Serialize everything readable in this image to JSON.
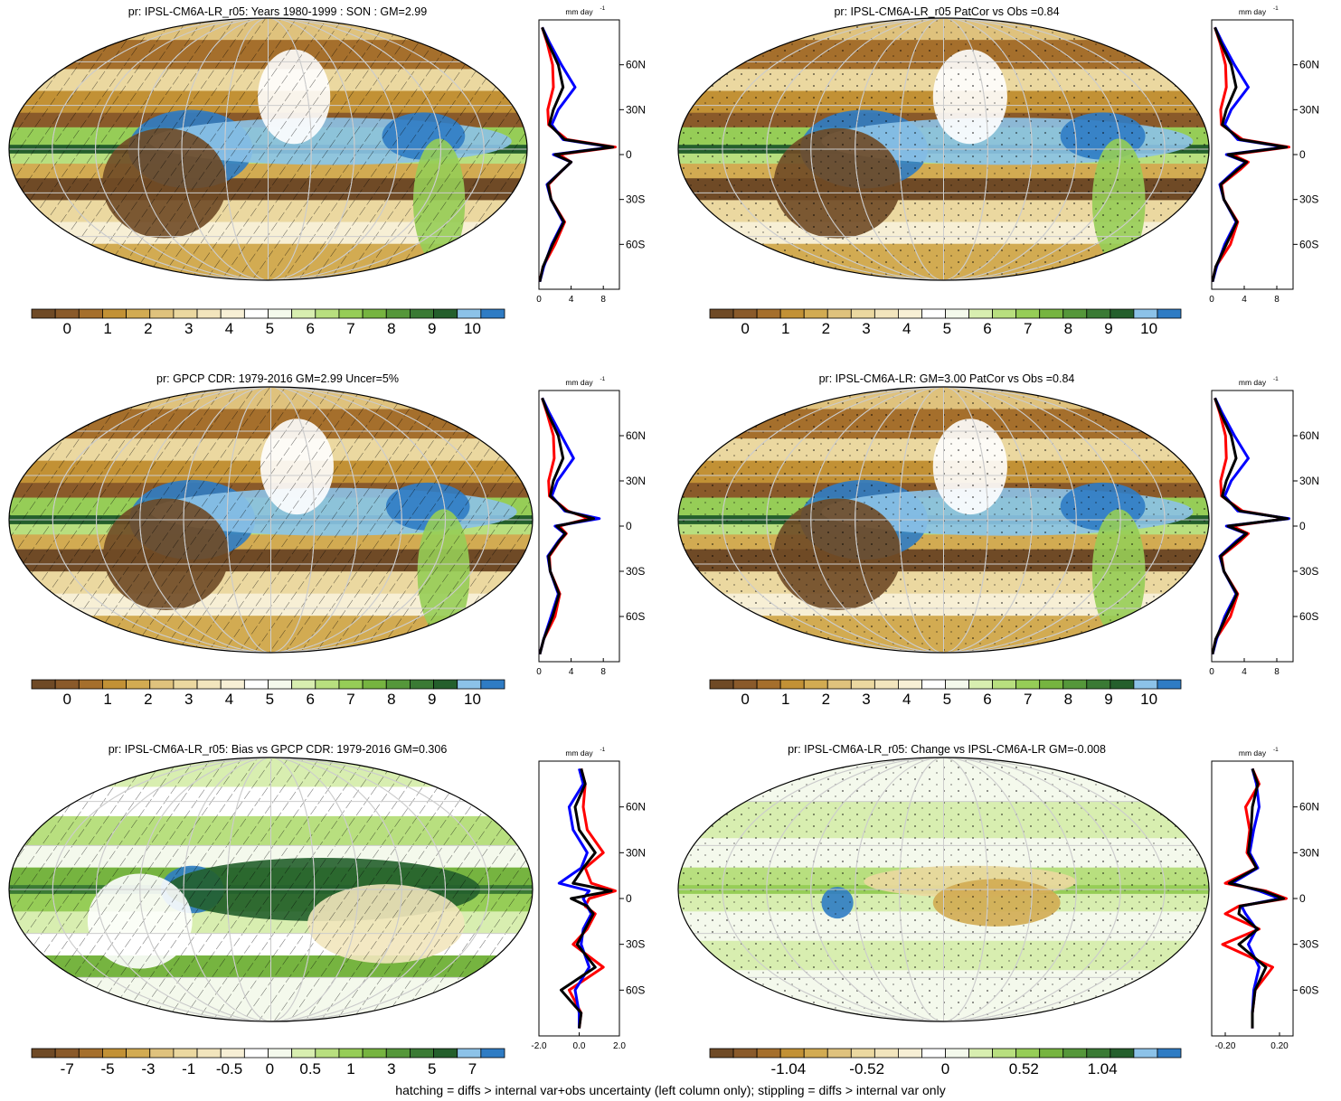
{
  "colors": {
    "levels": [
      "#6f4a26",
      "#8a5a2a",
      "#a56f2c",
      "#c29135",
      "#d2ab52",
      "#dfc27d",
      "#ebd8a0",
      "#f2e5bd",
      "#f7efd5",
      "#ffffff",
      "#f4f9ec",
      "#d8eeb0",
      "#b8df7f",
      "#96cd57",
      "#76b440",
      "#55973a",
      "#3a7a34",
      "#245f2c",
      "#8cc2e8",
      "#2f7cc4"
    ],
    "zonal_model": "#ff0000",
    "zonal_obs": "#0000ff",
    "zonal_mean": "#000000"
  },
  "footnote": "hatching = diffs > internal var+obs uncertainty (left column only); stippling = diffs > internal var only",
  "zonal_common": {
    "unit": "mm day",
    "unit_exp": "-1",
    "lat_labels": [
      "60N",
      "30N",
      "0",
      "30S",
      "60S"
    ],
    "lat_values": [
      60,
      30,
      0,
      -30,
      -60
    ]
  },
  "panels": [
    {
      "id": "model-clim",
      "title": "pr: IPSL-CM6A-LR_r05: Years 1980-1999 : SON : GM=2.99",
      "map_type": "clim",
      "overlay": "hatch",
      "colorbar_labels": [
        "0",
        "1",
        "2",
        "3",
        "4",
        "5",
        "6",
        "7",
        "8",
        "9",
        "10"
      ],
      "zonal_ticks": [
        "0",
        "4",
        "8"
      ],
      "zonal_xlim": [
        0,
        10
      ]
    },
    {
      "id": "ens-clim",
      "title": "pr: IPSL-CM6A-LR_r05 PatCor vs Obs =0.84",
      "map_type": "clim",
      "overlay": "stipple",
      "colorbar_labels": [
        "0",
        "1",
        "2",
        "3",
        "4",
        "5",
        "6",
        "7",
        "8",
        "9",
        "10"
      ],
      "zonal_ticks": [
        "0",
        "4",
        "8"
      ],
      "zonal_xlim": [
        0,
        10
      ]
    },
    {
      "id": "obs-clim",
      "title": "pr: GPCP CDR: 1979-2016 GM=2.99 Uncer=5%",
      "map_type": "clim",
      "overlay": "hatch",
      "colorbar_labels": [
        "0",
        "1",
        "2",
        "3",
        "4",
        "5",
        "6",
        "7",
        "8",
        "9",
        "10"
      ],
      "zonal_ticks": [
        "0",
        "4",
        "8"
      ],
      "zonal_xlim": [
        0,
        10
      ]
    },
    {
      "id": "ens-mean-clim",
      "title": "pr: IPSL-CM6A-LR: GM=3.00 PatCor vs Obs =0.84",
      "map_type": "clim",
      "overlay": "stipple",
      "colorbar_labels": [
        "0",
        "1",
        "2",
        "3",
        "4",
        "5",
        "6",
        "7",
        "8",
        "9",
        "10"
      ],
      "zonal_ticks": [
        "0",
        "4",
        "8"
      ],
      "zonal_xlim": [
        0,
        10
      ]
    },
    {
      "id": "bias",
      "title": "pr: IPSL-CM6A-LR_r05: Bias vs GPCP CDR: 1979-2016  GM=0.306",
      "map_type": "bias",
      "overlay": "hatch",
      "colorbar_labels": [
        "-7",
        "-5",
        "-3",
        "-1",
        "-0.5",
        "0",
        "0.5",
        "1",
        "3",
        "5",
        "7"
      ],
      "zonal_ticks": [
        "-2.0",
        "0.0",
        "2.0"
      ],
      "zonal_xlim": [
        -2,
        2
      ]
    },
    {
      "id": "change",
      "title": "pr: IPSL-CM6A-LR_r05: Change vs IPSL-CM6A-LR GM=-0.008",
      "map_type": "change",
      "overlay": "stipple",
      "colorbar_labels": [
        "-1.04",
        "-0.52",
        "0",
        "0.52",
        "1.04"
      ],
      "zonal_ticks": [
        "-0.20",
        "0.20"
      ],
      "zonal_xlim": [
        -0.3,
        0.3
      ]
    }
  ],
  "chart_data": [
    {
      "type": "line",
      "title": "pr: IPSL-CM6A-LR_r05: Years 1980-1999 : SON : GM=2.99",
      "xlabel": "mm day-1",
      "xlim": [
        0,
        10
      ],
      "ylim": [
        -90,
        90
      ],
      "y": [
        85,
        75,
        60,
        45,
        30,
        20,
        10,
        5,
        0,
        -5,
        -10,
        -20,
        -30,
        -45,
        -60,
        -75,
        -85
      ],
      "series": [
        {
          "values": [
            0.4,
            1.0,
            1.7,
            1.8,
            1.1,
            1.2,
            3.5,
            9.5,
            2.5,
            4.0,
            3.0,
            1.2,
            1.5,
            3.2,
            2.0,
            0.5,
            0.1
          ]
        },
        {
          "values": [
            0.4,
            1.3,
            2.8,
            4.5,
            2.4,
            1.6,
            3.0,
            9.0,
            1.8,
            4.0,
            3.0,
            1.0,
            1.5,
            3.0,
            1.6,
            0.6,
            0.1
          ]
        },
        {
          "values": [
            0.4,
            1.1,
            2.4,
            3.0,
            1.8,
            1.3,
            3.2,
            9.2,
            2.0,
            4.0,
            3.0,
            1.1,
            1.5,
            3.1,
            1.7,
            0.5,
            0.1
          ]
        }
      ]
    },
    {
      "type": "line",
      "title": "pr: IPSL-CM6A-LR_r05 PatCor vs Obs =0.84",
      "xlabel": "mm day-1",
      "xlim": [
        0,
        10
      ],
      "ylim": [
        -90,
        90
      ],
      "y": [
        85,
        75,
        60,
        45,
        30,
        20,
        10,
        5,
        0,
        -5,
        -10,
        -20,
        -30,
        -45,
        -60,
        -75,
        -85
      ],
      "series": [
        {
          "values": [
            0.4,
            1.0,
            1.7,
            1.8,
            1.1,
            1.2,
            3.8,
            9.5,
            2.5,
            4.5,
            3.5,
            1.2,
            1.5,
            3.2,
            2.3,
            0.5,
            0.1
          ]
        },
        {
          "values": [
            0.4,
            1.3,
            2.8,
            4.5,
            2.4,
            1.6,
            3.2,
            9.0,
            1.8,
            4.2,
            3.0,
            1.0,
            1.5,
            3.0,
            1.6,
            0.6,
            0.1
          ]
        },
        {
          "values": [
            0.4,
            1.1,
            2.4,
            3.0,
            1.8,
            1.3,
            3.5,
            9.2,
            2.0,
            4.3,
            3.2,
            1.1,
            1.5,
            3.1,
            1.8,
            0.5,
            0.1
          ]
        }
      ]
    },
    {
      "type": "line",
      "title": "pr: GPCP CDR: 1979-2016 GM=2.99 Uncer=5%",
      "xlabel": "mm day-1",
      "xlim": [
        0,
        10
      ],
      "ylim": [
        -90,
        90
      ],
      "y": [
        85,
        75,
        60,
        45,
        30,
        20,
        10,
        5,
        0,
        -5,
        -10,
        -20,
        -30,
        -45,
        -60,
        -75,
        -85
      ],
      "series": [
        {
          "values": [
            0.4,
            1.0,
            1.8,
            1.9,
            1.2,
            1.3,
            3.6,
            6.2,
            2.5,
            3.4,
            2.6,
            1.3,
            1.4,
            2.6,
            2.0,
            0.6,
            0.1
          ]
        },
        {
          "values": [
            0.4,
            1.3,
            2.8,
            4.3,
            2.3,
            1.6,
            3.2,
            7.5,
            2.0,
            3.2,
            2.4,
            1.1,
            1.4,
            2.4,
            1.5,
            0.6,
            0.1
          ]
        },
        {
          "values": [
            0.4,
            1.1,
            2.4,
            3.0,
            1.8,
            1.4,
            3.4,
            6.8,
            2.2,
            3.3,
            2.5,
            1.2,
            1.4,
            2.5,
            1.7,
            0.6,
            0.1
          ]
        }
      ]
    },
    {
      "type": "line",
      "title": "pr: IPSL-CM6A-LR: GM=3.00 PatCor vs Obs =0.84",
      "xlabel": "mm day-1",
      "xlim": [
        0,
        10
      ],
      "ylim": [
        -90,
        90
      ],
      "y": [
        85,
        75,
        60,
        45,
        30,
        20,
        10,
        5,
        0,
        -5,
        -10,
        -20,
        -30,
        -45,
        -60,
        -75,
        -85
      ],
      "series": [
        {
          "values": [
            0.4,
            1.0,
            1.7,
            1.8,
            1.1,
            1.2,
            3.8,
            9.2,
            2.5,
            4.5,
            3.5,
            1.2,
            1.5,
            3.2,
            2.3,
            0.5,
            0.1
          ]
        },
        {
          "values": [
            0.4,
            1.3,
            2.8,
            4.5,
            2.4,
            1.6,
            3.2,
            9.5,
            1.8,
            4.2,
            3.0,
            1.0,
            1.5,
            3.0,
            1.6,
            0.6,
            0.1
          ]
        },
        {
          "values": [
            0.4,
            1.1,
            2.4,
            3.0,
            1.8,
            1.3,
            3.5,
            9.3,
            2.0,
            4.3,
            3.2,
            1.1,
            1.5,
            3.1,
            1.8,
            0.5,
            0.1
          ]
        }
      ]
    },
    {
      "type": "line",
      "title": "pr: IPSL-CM6A-LR_r05: Bias vs GPCP CDR: 1979-2016  GM=0.306",
      "xlabel": "mm day-1",
      "xlim": [
        -2,
        2
      ],
      "ylim": [
        -90,
        90
      ],
      "y": [
        85,
        75,
        60,
        45,
        30,
        20,
        10,
        5,
        0,
        -5,
        -10,
        -20,
        -30,
        -45,
        -60,
        -75,
        -85
      ],
      "series": [
        {
          "values": [
            0.1,
            0.3,
            0.2,
            0.4,
            1.2,
            0.3,
            0.6,
            1.8,
            0.5,
            0.3,
            0.8,
            0.4,
            -0.3,
            1.2,
            -0.5,
            0.1,
            0.0
          ]
        },
        {
          "values": [
            0.0,
            0.2,
            -0.5,
            -0.3,
            0.4,
            0.1,
            -1.0,
            0.5,
            0.2,
            0.4,
            0.6,
            0.2,
            0.1,
            0.5,
            -0.2,
            0.0,
            0.0
          ]
        },
        {
          "values": [
            0.1,
            0.3,
            -0.2,
            0.0,
            0.8,
            0.2,
            -0.3,
            1.6,
            -0.4,
            0.4,
            0.7,
            0.3,
            -0.1,
            0.8,
            -0.9,
            0.1,
            0.0
          ]
        }
      ]
    },
    {
      "type": "line",
      "title": "pr: IPSL-CM6A-LR_r05: Change vs IPSL-CM6A-LR GM=-0.008",
      "xlabel": "mm day-1",
      "xlim": [
        -0.3,
        0.3
      ],
      "ylim": [
        -90,
        90
      ],
      "y": [
        85,
        75,
        60,
        45,
        30,
        20,
        10,
        5,
        0,
        -5,
        -10,
        -20,
        -30,
        -45,
        -60,
        -75,
        -85
      ],
      "series": [
        {
          "values": [
            0.0,
            0.05,
            -0.05,
            -0.02,
            -0.04,
            0.03,
            -0.2,
            0.1,
            0.25,
            -0.1,
            -0.2,
            0.05,
            -0.22,
            0.15,
            0.02,
            0.0,
            0.0
          ]
        },
        {
          "values": [
            0.0,
            0.03,
            0.05,
            0.01,
            -0.02,
            0.04,
            -0.15,
            0.05,
            0.2,
            -0.08,
            -0.05,
            0.03,
            -0.03,
            0.05,
            0.01,
            0.0,
            0.0
          ]
        },
        {
          "values": [
            0.0,
            0.04,
            0.0,
            -0.01,
            -0.03,
            0.03,
            -0.17,
            0.08,
            0.23,
            -0.09,
            -0.1,
            0.04,
            -0.1,
            0.1,
            0.02,
            0.0,
            0.0
          ]
        }
      ]
    }
  ]
}
